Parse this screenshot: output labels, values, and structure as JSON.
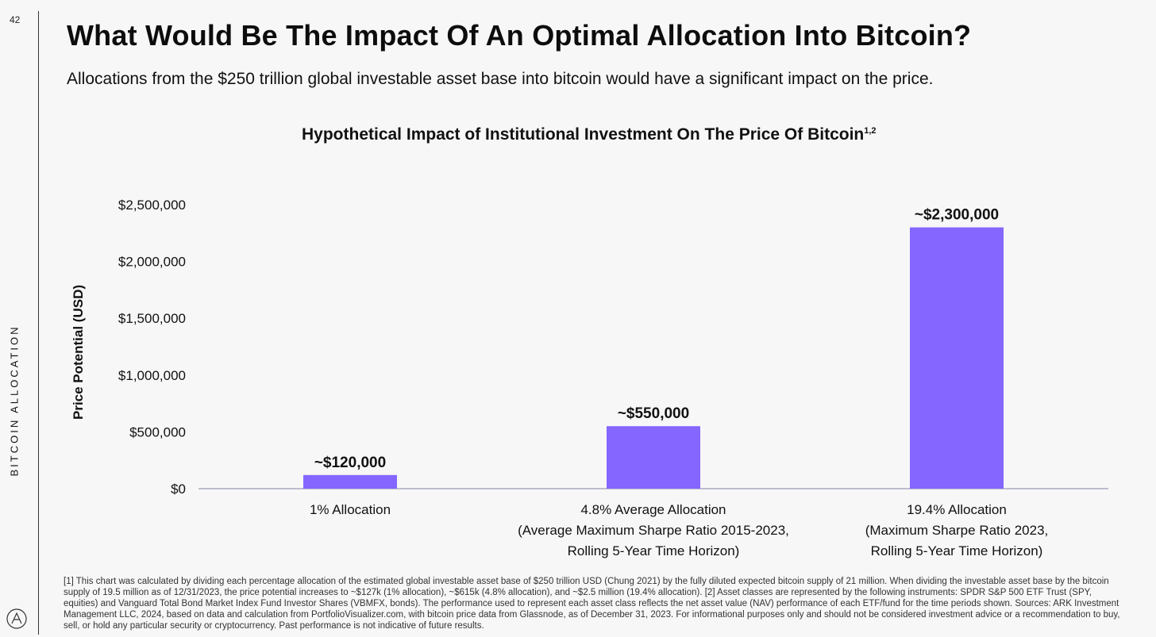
{
  "page": {
    "number": "42",
    "side_label": "BITCOIN ALLOCATION",
    "title": "What Would Be The Impact Of An Optimal Allocation Into Bitcoin?",
    "subtitle": "Allocations from the $250 trillion global investable asset base into bitcoin would have a significant impact on the price.",
    "footnote": "[1] This chart was calculated by dividing each percentage allocation of the estimated global investable asset base of $250 trillion USD (Chung 2021) by the fully diluted expected bitcoin supply of 21 million. When dividing the investable asset base by the bitcoin supply of 19.5 million as of 12/31/2023, the price potential increases to ~$127k (1% allocation), ~$615k (4.8% allocation), and ~$2.5 million (19.4% allocation). [2] Asset classes are represented by the following instruments: SPDR S&P 500 ETF Trust (SPY, equities) and Vanguard Total Bond Market Index Fund Investor Shares (VBMFX, bonds). The performance used to represent each asset class reflects the net asset value (NAV) performance of each ETF/fund for the time periods shown. Sources: ARK Investment Management LLC, 2024, based on data and calculation from PortfolioVisualizer.com, with bitcoin price data from Glassnode, as of December 31, 2023. For informational purposes only and should not be considered investment advice or a recommendation to buy, sell, or hold any particular security or cryptocurrency. Past performance is not indicative of future results.",
    "logo_icon": "ark-logo-icon"
  },
  "chart_data": {
    "type": "bar",
    "title": "Hypothetical Impact of Institutional Investment On The Price Of Bitcoin",
    "title_superscript": "1,2",
    "ylabel": "Price Potential (USD)",
    "xlabel": "",
    "ylim": [
      0,
      2500000
    ],
    "yticks": [
      0,
      500000,
      1000000,
      1500000,
      2000000,
      2500000
    ],
    "ytick_labels": [
      "$0",
      "$500,000",
      "$1,000,000",
      "$1,500,000",
      "$2,000,000",
      "$2,500,000"
    ],
    "grid": false,
    "categories": [
      [
        "1% Allocation"
      ],
      [
        "4.8% Average Allocation",
        "(Average Maximum Sharpe Ratio 2015-2023,",
        "Rolling 5-Year Time Horizon)"
      ],
      [
        "19.4% Allocation",
        "(Maximum Sharpe Ratio 2023,",
        "Rolling 5-Year Time Horizon)"
      ]
    ],
    "values": [
      120000,
      550000,
      2300000
    ],
    "data_labels": [
      "~$120,000",
      "~$550,000",
      "~$2,300,000"
    ],
    "bar_color": "#8566ff",
    "axis_color": "#9a9ab5"
  }
}
